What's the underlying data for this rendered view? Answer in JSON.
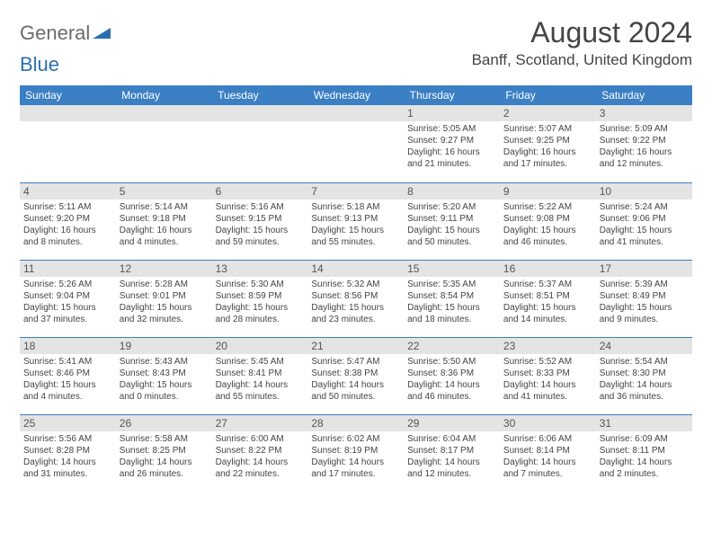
{
  "logo": {
    "text_gray": "General",
    "text_blue": "Blue"
  },
  "header": {
    "month_title": "August 2024",
    "location": "Banff, Scotland, United Kingdom"
  },
  "colors": {
    "header_bg": "#3b7fc4",
    "header_text": "#ffffff",
    "border": "#3b7fc4",
    "daynum_bg": "#e4e4e4",
    "text": "#444444"
  },
  "weekdays": [
    "Sunday",
    "Monday",
    "Tuesday",
    "Wednesday",
    "Thursday",
    "Friday",
    "Saturday"
  ],
  "weeks": [
    [
      null,
      null,
      null,
      null,
      {
        "n": "1",
        "sunrise": "5:05 AM",
        "sunset": "9:27 PM",
        "daylight": "16 hours and 21 minutes."
      },
      {
        "n": "2",
        "sunrise": "5:07 AM",
        "sunset": "9:25 PM",
        "daylight": "16 hours and 17 minutes."
      },
      {
        "n": "3",
        "sunrise": "5:09 AM",
        "sunset": "9:22 PM",
        "daylight": "16 hours and 12 minutes."
      }
    ],
    [
      {
        "n": "4",
        "sunrise": "5:11 AM",
        "sunset": "9:20 PM",
        "daylight": "16 hours and 8 minutes."
      },
      {
        "n": "5",
        "sunrise": "5:14 AM",
        "sunset": "9:18 PM",
        "daylight": "16 hours and 4 minutes."
      },
      {
        "n": "6",
        "sunrise": "5:16 AM",
        "sunset": "9:15 PM",
        "daylight": "15 hours and 59 minutes."
      },
      {
        "n": "7",
        "sunrise": "5:18 AM",
        "sunset": "9:13 PM",
        "daylight": "15 hours and 55 minutes."
      },
      {
        "n": "8",
        "sunrise": "5:20 AM",
        "sunset": "9:11 PM",
        "daylight": "15 hours and 50 minutes."
      },
      {
        "n": "9",
        "sunrise": "5:22 AM",
        "sunset": "9:08 PM",
        "daylight": "15 hours and 46 minutes."
      },
      {
        "n": "10",
        "sunrise": "5:24 AM",
        "sunset": "9:06 PM",
        "daylight": "15 hours and 41 minutes."
      }
    ],
    [
      {
        "n": "11",
        "sunrise": "5:26 AM",
        "sunset": "9:04 PM",
        "daylight": "15 hours and 37 minutes."
      },
      {
        "n": "12",
        "sunrise": "5:28 AM",
        "sunset": "9:01 PM",
        "daylight": "15 hours and 32 minutes."
      },
      {
        "n": "13",
        "sunrise": "5:30 AM",
        "sunset": "8:59 PM",
        "daylight": "15 hours and 28 minutes."
      },
      {
        "n": "14",
        "sunrise": "5:32 AM",
        "sunset": "8:56 PM",
        "daylight": "15 hours and 23 minutes."
      },
      {
        "n": "15",
        "sunrise": "5:35 AM",
        "sunset": "8:54 PM",
        "daylight": "15 hours and 18 minutes."
      },
      {
        "n": "16",
        "sunrise": "5:37 AM",
        "sunset": "8:51 PM",
        "daylight": "15 hours and 14 minutes."
      },
      {
        "n": "17",
        "sunrise": "5:39 AM",
        "sunset": "8:49 PM",
        "daylight": "15 hours and 9 minutes."
      }
    ],
    [
      {
        "n": "18",
        "sunrise": "5:41 AM",
        "sunset": "8:46 PM",
        "daylight": "15 hours and 4 minutes."
      },
      {
        "n": "19",
        "sunrise": "5:43 AM",
        "sunset": "8:43 PM",
        "daylight": "15 hours and 0 minutes."
      },
      {
        "n": "20",
        "sunrise": "5:45 AM",
        "sunset": "8:41 PM",
        "daylight": "14 hours and 55 minutes."
      },
      {
        "n": "21",
        "sunrise": "5:47 AM",
        "sunset": "8:38 PM",
        "daylight": "14 hours and 50 minutes."
      },
      {
        "n": "22",
        "sunrise": "5:50 AM",
        "sunset": "8:36 PM",
        "daylight": "14 hours and 46 minutes."
      },
      {
        "n": "23",
        "sunrise": "5:52 AM",
        "sunset": "8:33 PM",
        "daylight": "14 hours and 41 minutes."
      },
      {
        "n": "24",
        "sunrise": "5:54 AM",
        "sunset": "8:30 PM",
        "daylight": "14 hours and 36 minutes."
      }
    ],
    [
      {
        "n": "25",
        "sunrise": "5:56 AM",
        "sunset": "8:28 PM",
        "daylight": "14 hours and 31 minutes."
      },
      {
        "n": "26",
        "sunrise": "5:58 AM",
        "sunset": "8:25 PM",
        "daylight": "14 hours and 26 minutes."
      },
      {
        "n": "27",
        "sunrise": "6:00 AM",
        "sunset": "8:22 PM",
        "daylight": "14 hours and 22 minutes."
      },
      {
        "n": "28",
        "sunrise": "6:02 AM",
        "sunset": "8:19 PM",
        "daylight": "14 hours and 17 minutes."
      },
      {
        "n": "29",
        "sunrise": "6:04 AM",
        "sunset": "8:17 PM",
        "daylight": "14 hours and 12 minutes."
      },
      {
        "n": "30",
        "sunrise": "6:06 AM",
        "sunset": "8:14 PM",
        "daylight": "14 hours and 7 minutes."
      },
      {
        "n": "31",
        "sunrise": "6:09 AM",
        "sunset": "8:11 PM",
        "daylight": "14 hours and 2 minutes."
      }
    ]
  ],
  "labels": {
    "sunrise_prefix": "Sunrise: ",
    "sunset_prefix": "Sunset: ",
    "daylight_prefix": "Daylight: "
  }
}
